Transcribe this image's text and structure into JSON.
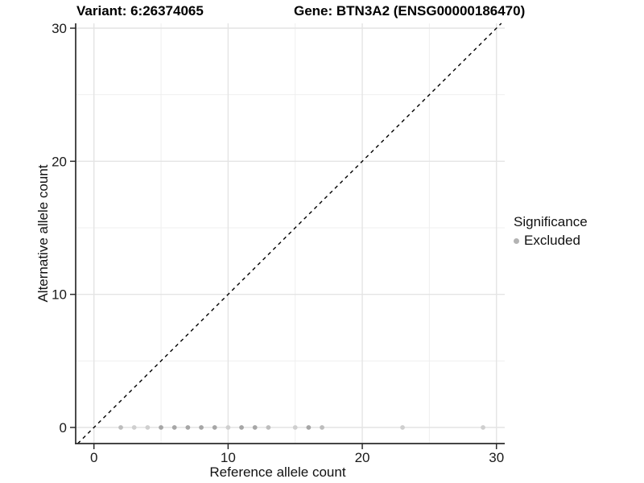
{
  "header": {
    "title_left": "Variant: 6:26374065",
    "title_right": "Gene: BTN3A2 (ENSG00000186470)"
  },
  "chart_data": {
    "type": "scatter",
    "title": "Variant: 6:26374065 / Gene: BTN3A2 (ENSG00000186470)",
    "xlabel": "Reference allele count",
    "ylabel": "Alternative allele count",
    "xlim": [
      -1.4,
      30.6
    ],
    "ylim": [
      -1.2,
      30.4
    ],
    "x_major_ticks": [
      0,
      10,
      20,
      30
    ],
    "y_major_ticks": [
      0,
      10,
      20,
      30
    ],
    "x_minor_ticks": [
      5,
      15,
      25
    ],
    "y_minor_ticks": [
      5,
      15,
      25
    ],
    "grid": {
      "major_color": "#e4e4e4",
      "minor_color": "#efefef",
      "on": true
    },
    "axis_color": "#2b2b2b",
    "identity_line": {
      "equation": "y = x",
      "style": "dashed",
      "color": "#000000"
    },
    "series": [
      {
        "name": "Excluded",
        "color_levels": {
          "light": "#cfcfcf",
          "medium": "#bdbdbd",
          "dark": "#a6a6a6"
        },
        "points": [
          {
            "x": 2,
            "y": 0,
            "shade": "medium"
          },
          {
            "x": 3,
            "y": 0,
            "shade": "light"
          },
          {
            "x": 4,
            "y": 0,
            "shade": "light"
          },
          {
            "x": 5,
            "y": 0,
            "shade": "dark"
          },
          {
            "x": 6,
            "y": 0,
            "shade": "dark"
          },
          {
            "x": 7,
            "y": 0,
            "shade": "dark"
          },
          {
            "x": 8,
            "y": 0,
            "shade": "dark"
          },
          {
            "x": 9,
            "y": 0,
            "shade": "dark"
          },
          {
            "x": 10,
            "y": 0,
            "shade": "light"
          },
          {
            "x": 11,
            "y": 0,
            "shade": "dark"
          },
          {
            "x": 12,
            "y": 0,
            "shade": "dark"
          },
          {
            "x": 13,
            "y": 0,
            "shade": "medium"
          },
          {
            "x": 15,
            "y": 0,
            "shade": "light"
          },
          {
            "x": 16,
            "y": 0,
            "shade": "dark"
          },
          {
            "x": 17,
            "y": 0,
            "shade": "medium"
          },
          {
            "x": 23,
            "y": 0,
            "shade": "light"
          },
          {
            "x": 29,
            "y": 0,
            "shade": "light"
          }
        ]
      }
    ],
    "legend": {
      "title": "Significance",
      "position": "right",
      "items": [
        {
          "label": "Excluded",
          "color": "#b3b3b3"
        }
      ]
    }
  }
}
